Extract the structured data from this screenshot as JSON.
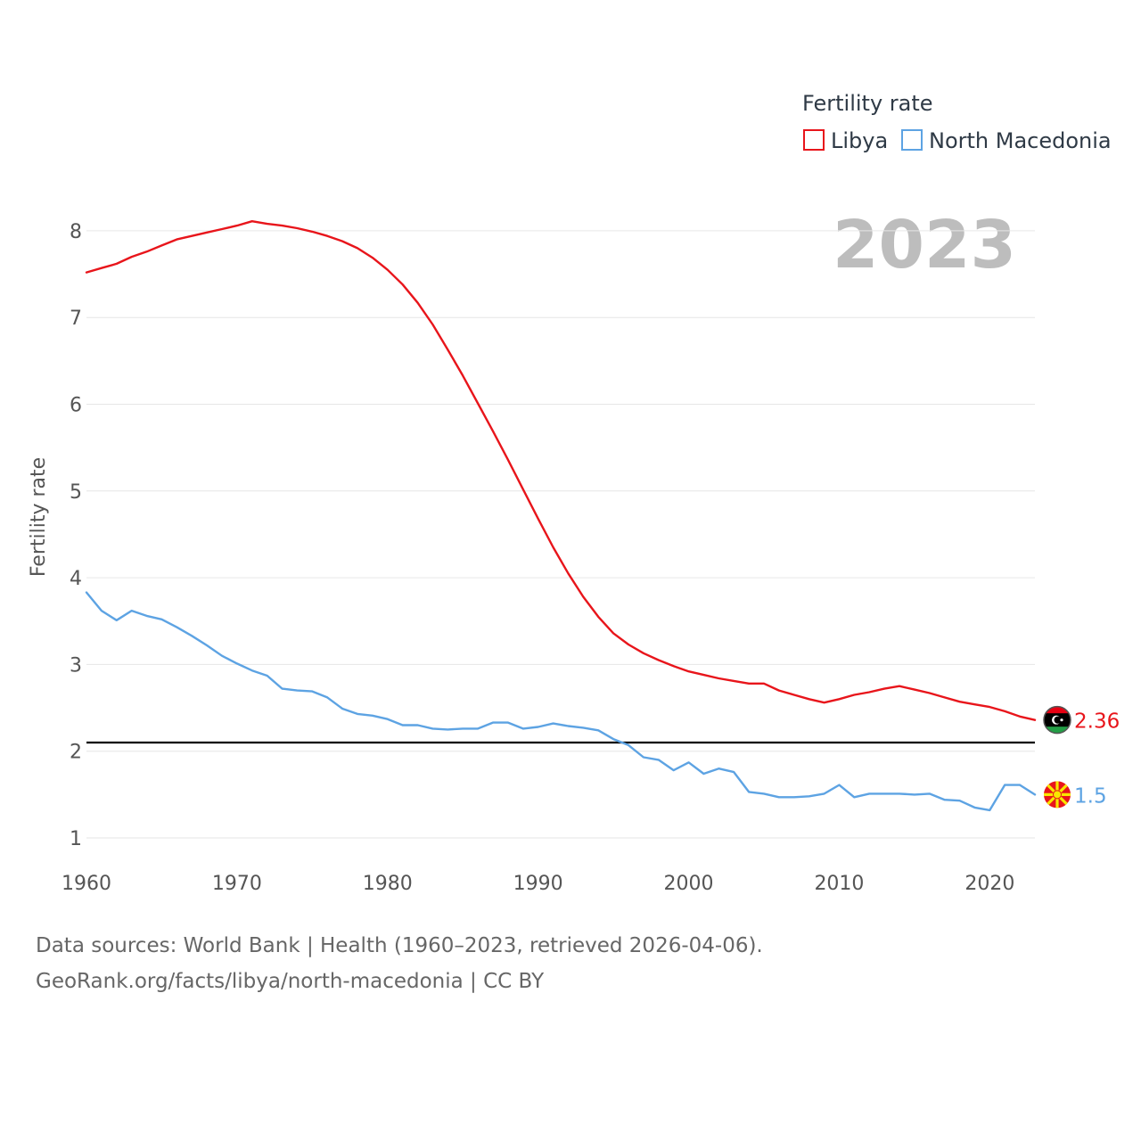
{
  "chart_data": {
    "type": "line",
    "title": "Fertility rate",
    "year_stamp": "2023",
    "ylabel": "Fertility rate",
    "xlabel": "",
    "xlim": [
      1960,
      2023
    ],
    "ylim": [
      0.7,
      8.4
    ],
    "x_ticks": [
      1960,
      1970,
      1980,
      1990,
      2000,
      2010,
      2020
    ],
    "y_ticks": [
      1,
      2,
      3,
      4,
      5,
      6,
      7,
      8
    ],
    "reference_line": 2.1,
    "series": [
      {
        "name": "Libya",
        "color": "#e8151b",
        "end_label": "2.36",
        "flag_icon": "libya-flag-icon",
        "x": [
          1960,
          1961,
          1962,
          1963,
          1964,
          1965,
          1966,
          1967,
          1968,
          1969,
          1970,
          1971,
          1972,
          1973,
          1974,
          1975,
          1976,
          1977,
          1978,
          1979,
          1980,
          1981,
          1982,
          1983,
          1984,
          1985,
          1986,
          1987,
          1988,
          1989,
          1990,
          1991,
          1992,
          1993,
          1994,
          1995,
          1996,
          1997,
          1998,
          1999,
          2000,
          2001,
          2002,
          2003,
          2004,
          2005,
          2006,
          2007,
          2008,
          2009,
          2010,
          2011,
          2012,
          2013,
          2014,
          2015,
          2016,
          2017,
          2018,
          2019,
          2020,
          2021,
          2022,
          2023
        ],
        "values": [
          7.52,
          7.57,
          7.62,
          7.7,
          7.76,
          7.83,
          7.9,
          7.94,
          7.98,
          8.02,
          8.06,
          8.11,
          8.08,
          8.06,
          8.03,
          7.99,
          7.94,
          7.88,
          7.8,
          7.69,
          7.55,
          7.38,
          7.17,
          6.92,
          6.63,
          6.33,
          6.01,
          5.69,
          5.36,
          5.02,
          4.68,
          4.35,
          4.05,
          3.78,
          3.55,
          3.36,
          3.23,
          3.13,
          3.05,
          2.98,
          2.92,
          2.88,
          2.84,
          2.81,
          2.78,
          2.78,
          2.7,
          2.65,
          2.6,
          2.56,
          2.6,
          2.65,
          2.68,
          2.72,
          2.75,
          2.71,
          2.67,
          2.62,
          2.57,
          2.54,
          2.51,
          2.46,
          2.4,
          2.36
        ]
      },
      {
        "name": "North Macedonia",
        "color": "#5da3e3",
        "end_label": "1.5",
        "flag_icon": "north-macedonia-flag-icon",
        "x": [
          1960,
          1961,
          1962,
          1963,
          1964,
          1965,
          1966,
          1967,
          1968,
          1969,
          1970,
          1971,
          1972,
          1973,
          1974,
          1975,
          1976,
          1977,
          1978,
          1979,
          1980,
          1981,
          1982,
          1983,
          1984,
          1985,
          1986,
          1987,
          1988,
          1989,
          1990,
          1991,
          1992,
          1993,
          1994,
          1995,
          1996,
          1997,
          1998,
          1999,
          2000,
          2001,
          2002,
          2003,
          2004,
          2005,
          2006,
          2007,
          2008,
          2009,
          2010,
          2011,
          2012,
          2013,
          2014,
          2015,
          2016,
          2017,
          2018,
          2019,
          2020,
          2021,
          2022,
          2023
        ],
        "values": [
          3.83,
          3.62,
          3.51,
          3.62,
          3.56,
          3.52,
          3.43,
          3.33,
          3.22,
          3.1,
          3.01,
          2.93,
          2.87,
          2.72,
          2.7,
          2.69,
          2.62,
          2.49,
          2.43,
          2.41,
          2.37,
          2.3,
          2.3,
          2.26,
          2.25,
          2.26,
          2.26,
          2.33,
          2.33,
          2.26,
          2.28,
          2.32,
          2.29,
          2.27,
          2.24,
          2.14,
          2.07,
          1.93,
          1.9,
          1.78,
          1.87,
          1.74,
          1.8,
          1.76,
          1.53,
          1.51,
          1.47,
          1.47,
          1.48,
          1.51,
          1.61,
          1.47,
          1.51,
          1.51,
          1.51,
          1.5,
          1.51,
          1.44,
          1.43,
          1.35,
          1.32,
          1.61,
          1.61,
          1.5
        ]
      }
    ]
  },
  "source": {
    "line1": "Data sources: World Bank | Health (1960–2023, retrieved 2026-04-06).",
    "line2": "GeoRank.org/facts/libya/north-macedonia | CC BY"
  }
}
